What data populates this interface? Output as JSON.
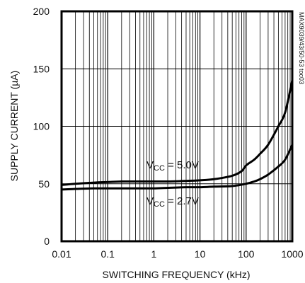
{
  "chart_data": {
    "type": "line",
    "xlabel": "SWITCHING FREQUENCY (kHz)",
    "ylabel": "SUPPLY CURRENT (µA)",
    "x_scale": "log",
    "xlim": [
      0.01,
      1000
    ],
    "ylim": [
      0,
      200
    ],
    "x_ticks": [
      0.01,
      0.1,
      1,
      10,
      100,
      1000
    ],
    "x_tick_labels": [
      "0.01",
      "0.1",
      "1",
      "10",
      "100",
      "1000"
    ],
    "y_ticks": [
      0,
      50,
      100,
      150,
      200
    ],
    "y_tick_labels": [
      "0",
      "50",
      "100",
      "150",
      "200"
    ],
    "grid": true,
    "series": [
      {
        "name": "VCC = 5.0V",
        "x": [
          0.01,
          0.02,
          0.05,
          0.1,
          0.2,
          0.5,
          1,
          2,
          5,
          10,
          20,
          50,
          80,
          100,
          150,
          200,
          300,
          500,
          700,
          1000
        ],
        "y": [
          49,
          50,
          51,
          51.5,
          52,
          52,
          52,
          52,
          52.5,
          53,
          54,
          57,
          61,
          66,
          71,
          76,
          84,
          100,
          112,
          140
        ]
      },
      {
        "name": "VCC = 2.7V",
        "x": [
          0.01,
          0.02,
          0.05,
          0.1,
          0.2,
          0.5,
          1,
          2,
          5,
          10,
          20,
          50,
          100,
          150,
          200,
          300,
          500,
          700,
          1000
        ],
        "y": [
          45,
          45.5,
          46,
          46,
          46,
          46,
          46,
          46.5,
          47,
          47,
          47.5,
          48,
          50,
          52,
          54,
          58,
          65,
          71,
          84
        ]
      }
    ],
    "annotations": [
      {
        "main": "V",
        "sub": "CC",
        "rest": " = 5.0V"
      },
      {
        "main": "V",
        "sub": "CC",
        "rest": " = 2.7V"
      }
    ],
    "side_code": "MAX9039/43/50-53 toc03"
  }
}
